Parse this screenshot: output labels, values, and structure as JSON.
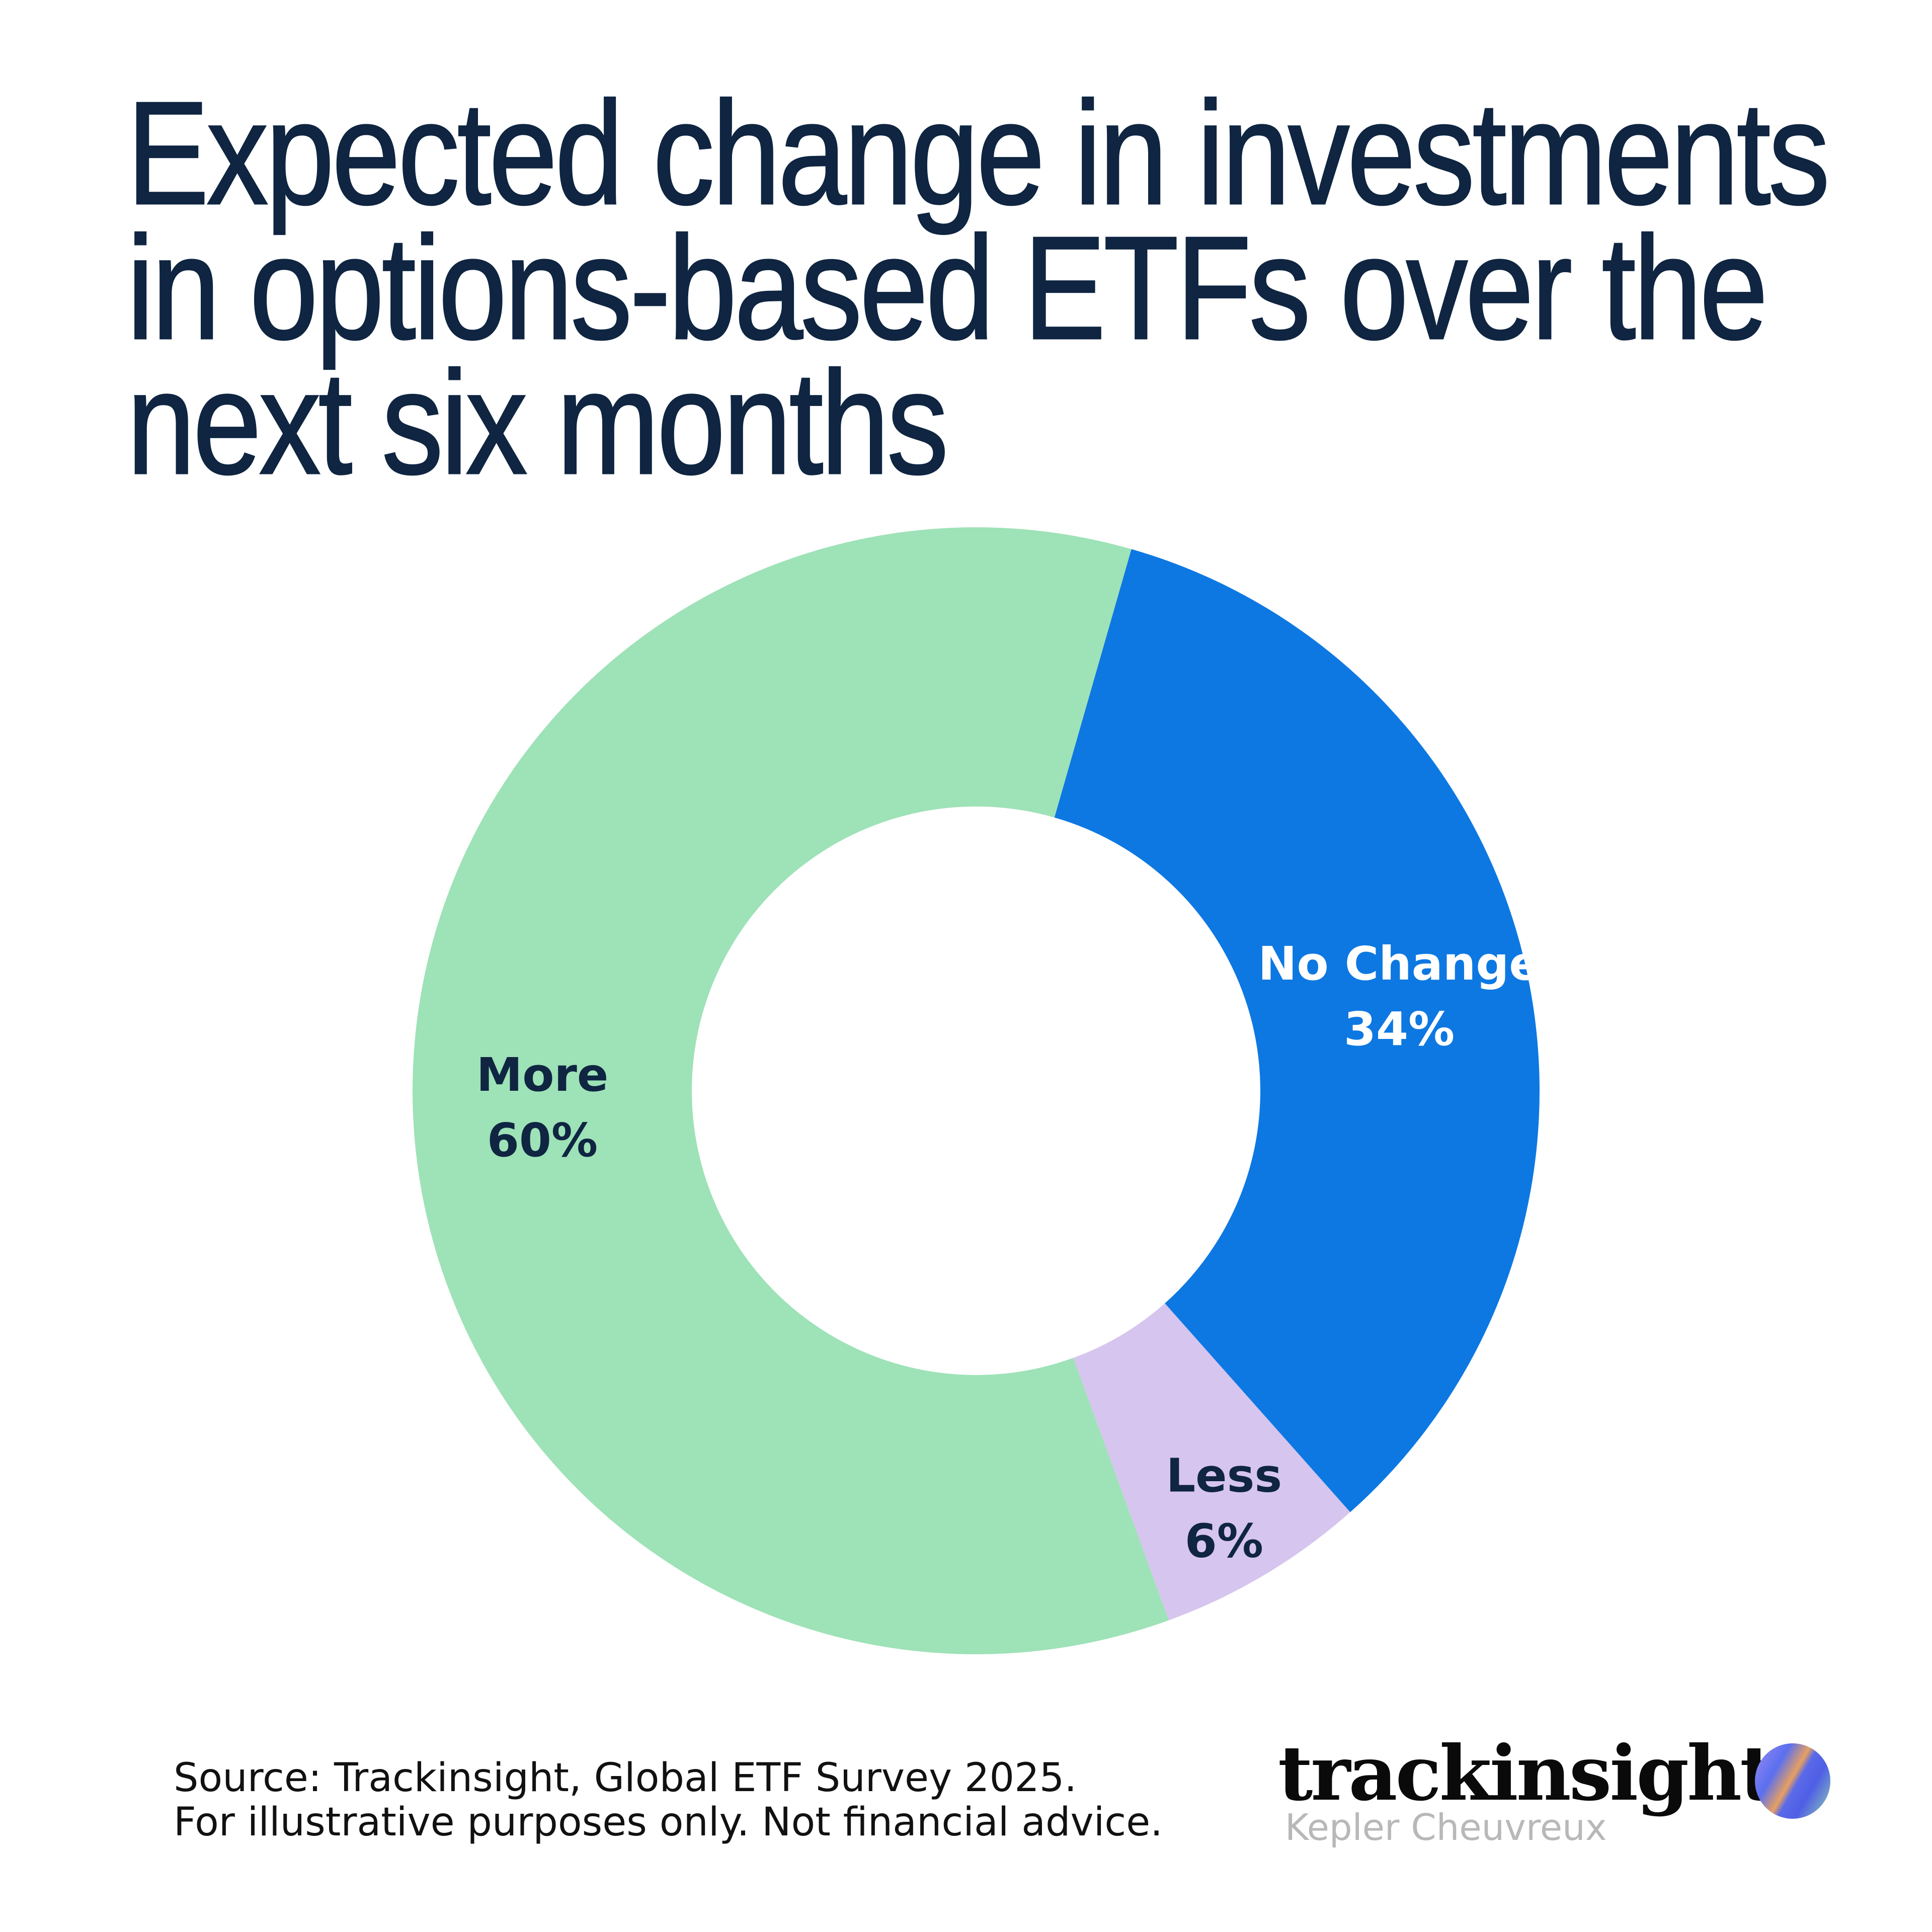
{
  "title": [
    "Expected change in investments",
    "in options-based ETFs over the",
    "next six months"
  ],
  "chart_data": {
    "type": "pie",
    "variant": "donut",
    "title": "Expected change in investments in options-based ETFs over the next six months",
    "slices": [
      {
        "label": "No Change",
        "value": 34,
        "value_label": "34%",
        "color": "#0d78e2",
        "text_color": "#ffffff"
      },
      {
        "label": "Less",
        "value": 6,
        "value_label": "6%",
        "color": "#d6c5ee",
        "text_color": "#0f2541"
      },
      {
        "label": "More",
        "value": 60,
        "value_label": "60%",
        "color": "#9ee2b7",
        "text_color": "#0f2541"
      }
    ],
    "legend": "none"
  },
  "footer": {
    "source": "Source: Trackinsight, Global ETF Survey 2025.",
    "disclaimer": "For illustrative purposes only. Not financial advice."
  },
  "logo": {
    "brand": "trackinsight",
    "partner": "Kepler Cheuvreux"
  }
}
